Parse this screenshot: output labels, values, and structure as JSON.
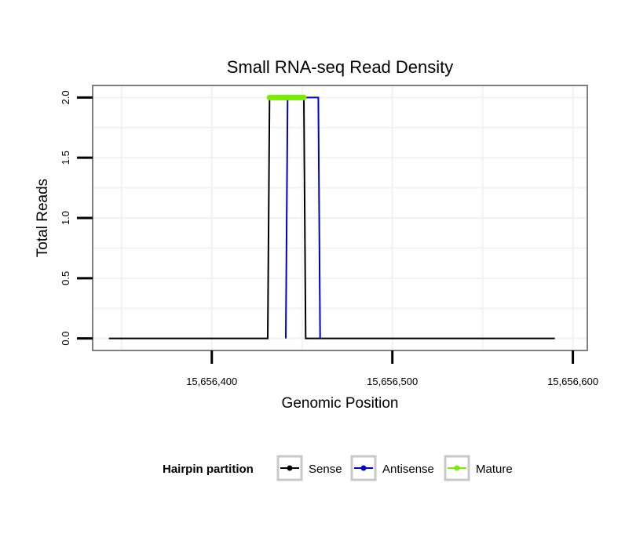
{
  "chart_data": {
    "type": "line",
    "title": "Small RNA-seq Read Density",
    "xlabel": "Genomic Position",
    "ylabel": "Total Reads",
    "xlim": [
      15656334,
      15656608
    ],
    "ylim": [
      -0.1,
      2.1
    ],
    "x_ticks": [
      15656400,
      15656500,
      15656600
    ],
    "x_tick_labels": [
      "15,656,400",
      "15,656,500",
      "15,656,600"
    ],
    "y_ticks": [
      0,
      0.5,
      1,
      1.5,
      2
    ],
    "y_tick_labels": [
      "0.0",
      "0.5",
      "1.0",
      "1.5",
      "2.0"
    ],
    "grid": true,
    "series": [
      {
        "name": "Sense",
        "color": "#000000",
        "x": [
          15656343,
          15656431,
          15656432,
          15656451,
          15656452,
          15656590
        ],
        "y": [
          0,
          0,
          2,
          2,
          0,
          0
        ]
      },
      {
        "name": "Antisense",
        "color": "#0000cc",
        "x": [
          15656441,
          15656442,
          15656459,
          15656460
        ],
        "y": [
          0,
          2,
          2,
          0
        ]
      },
      {
        "name": "Mature",
        "color": "#77ee00",
        "x": [
          15656432,
          15656451
        ],
        "y": [
          2,
          2
        ]
      }
    ],
    "legend": {
      "title": "Hairpin partition",
      "position": "bottom",
      "labels": [
        "Sense",
        "Antisense",
        "Mature"
      ]
    }
  }
}
